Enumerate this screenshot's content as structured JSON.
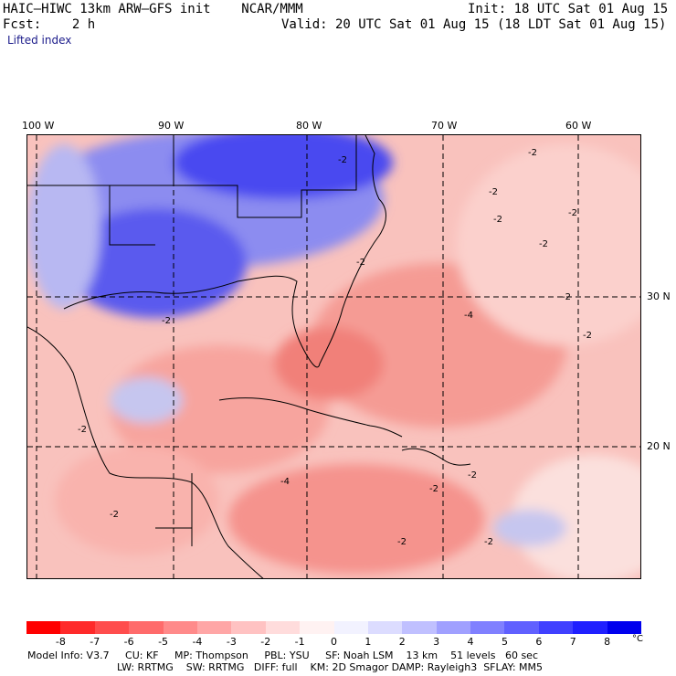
{
  "header": {
    "title": "HAIC–HIWC 13km ARW–GFS init    NCAR/MMM",
    "init": "Init: 18 UTC Sat 01 Aug 15",
    "fcst": "Fcst:    2 h",
    "valid": "Valid: 20 UTC Sat 01 Aug 15 (18 LDT Sat 01 Aug 15)",
    "field": "Lifted index"
  },
  "axes": {
    "lon_labels": [
      "100 W",
      "90 W",
      "80 W",
      "70 W",
      "60 W"
    ],
    "lat_labels": [
      "30 N",
      "20 N"
    ]
  },
  "contour_labels": [
    "-2",
    "-4",
    "-2",
    "-2",
    "-2",
    "-2",
    "-2",
    "-4",
    "-2",
    "-2",
    "-2",
    "-2",
    "-2",
    "-2",
    "-2",
    "-2",
    "-2",
    "-2"
  ],
  "colorbar": {
    "ticks": [
      "-8",
      "-7",
      "-6",
      "-5",
      "-4",
      "-3",
      "-2",
      "-1",
      "0",
      "1",
      "2",
      "3",
      "4",
      "5",
      "6",
      "7",
      "8"
    ],
    "unit": "°C",
    "colors": [
      "#ff0000",
      "#ff2a2a",
      "#ff4d4d",
      "#ff6b6b",
      "#ff8a8a",
      "#ffa6a6",
      "#ffc2c2",
      "#ffdcdc",
      "#fff2f2",
      "#f2f2ff",
      "#dcdcff",
      "#c0c0ff",
      "#a0a0ff",
      "#8080ff",
      "#6060ff",
      "#4040ff",
      "#2020ff",
      "#0000ee"
    ]
  },
  "footer": {
    "line1": "Model Info: V3.7     CU: KF     MP: Thompson     PBL: YSU     SF: Noah LSM    13 km    51 levels   60 sec",
    "line2": "LW: RRTMG    SW: RRTMG   DIFF: full    KM: 2D Smagor DAMP: Rayleigh3  SFLAY: MM5"
  }
}
